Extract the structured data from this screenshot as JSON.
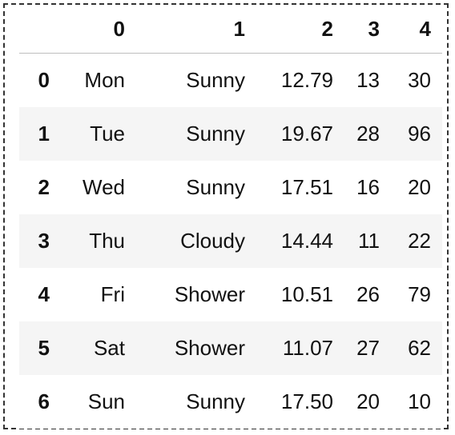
{
  "table": {
    "index_header": "",
    "columns": [
      "0",
      "1",
      "2",
      "3",
      "4"
    ],
    "rows": [
      {
        "index": "0",
        "cells": [
          "Mon",
          "Sunny",
          "12.79",
          "13",
          "30"
        ]
      },
      {
        "index": "1",
        "cells": [
          "Tue",
          "Sunny",
          "19.67",
          "28",
          "96"
        ]
      },
      {
        "index": "2",
        "cells": [
          "Wed",
          "Sunny",
          "17.51",
          "16",
          "20"
        ]
      },
      {
        "index": "3",
        "cells": [
          "Thu",
          "Cloudy",
          "14.44",
          "11",
          "22"
        ]
      },
      {
        "index": "4",
        "cells": [
          "Fri",
          "Shower",
          "10.51",
          "26",
          "79"
        ]
      },
      {
        "index": "5",
        "cells": [
          "Sat",
          "Shower",
          "11.07",
          "27",
          "62"
        ]
      },
      {
        "index": "6",
        "cells": [
          "Sun",
          "Sunny",
          "17.50",
          "20",
          "10"
        ]
      }
    ]
  },
  "colors": {
    "row_stripe": "#f5f5f5",
    "header_rule": "#bdbdbd",
    "frame_border": "#333333"
  }
}
